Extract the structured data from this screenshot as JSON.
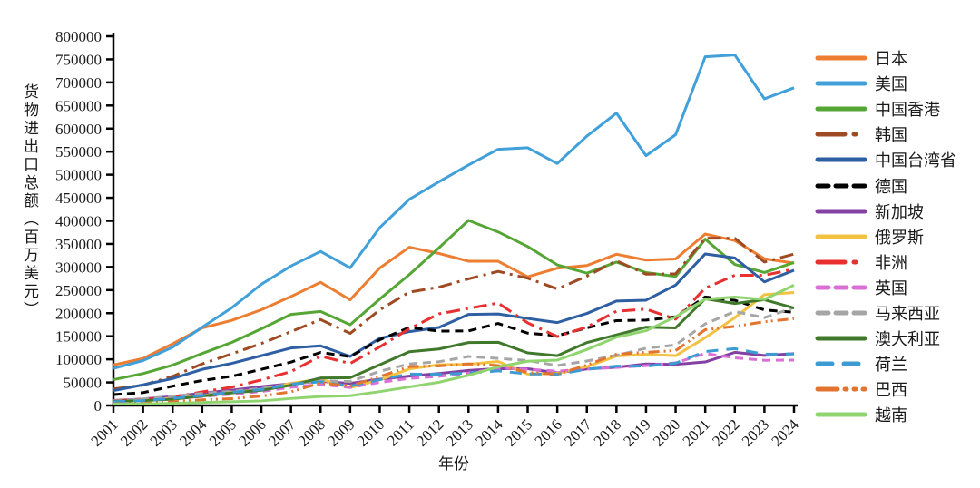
{
  "chart_data": {
    "type": "line",
    "title": "",
    "xlabel": "年份",
    "ylabel": "货物进出口总额（百万美元）",
    "ylim": [
      0,
      800000
    ],
    "yticks": [
      0,
      50000,
      100000,
      150000,
      200000,
      250000,
      300000,
      350000,
      400000,
      450000,
      500000,
      550000,
      600000,
      650000,
      700000,
      750000,
      800000
    ],
    "grid": false,
    "legend_position": "right",
    "x": [
      "2001",
      "2002",
      "2003",
      "2004",
      "2005",
      "2006",
      "2007",
      "2008",
      "2009",
      "2010",
      "2011",
      "2012",
      "2013",
      "2014",
      "2015",
      "2016",
      "2017",
      "2018",
      "2019",
      "2020",
      "2021",
      "2022",
      "2023",
      "2024"
    ],
    "series": [
      {
        "id": "japan",
        "name": "日本",
        "color": "#ED7D31",
        "style": "solid",
        "values": [
          87750,
          101900,
          133570,
          167890,
          184410,
          207360,
          236020,
          266790,
          228850,
          297770,
          342890,
          329450,
          312550,
          312440,
          278660,
          297470,
          303140,
          327660,
          315000,
          317530,
          371400,
          357400,
          318000,
          308270
        ]
      },
      {
        "id": "usa",
        "name": "美国",
        "color": "#41A0D9",
        "style": "solid",
        "values": [
          80490,
          97180,
          126330,
          169630,
          211630,
          262680,
          302080,
          333740,
          298260,
          385340,
          446650,
          484680,
          521000,
          555120,
          558390,
          524270,
          583700,
          633520,
          541220,
          586720,
          755640,
          759430,
          664450,
          688280
        ]
      },
      {
        "id": "hong-kong",
        "name": "中国香港",
        "color": "#56A636",
        "style": "solid",
        "values": [
          55970,
          69210,
          87410,
          112680,
          136700,
          166170,
          197250,
          203670,
          174930,
          230580,
          283520,
          341490,
          401010,
          376000,
          344340,
          304600,
          286650,
          310630,
          287970,
          279520,
          360330,
          305550,
          288090,
          309670
        ]
      },
      {
        "id": "korea",
        "name": "韩国",
        "color": "#9E4B24",
        "style": "dashdot",
        "values": [
          35910,
          44070,
          63230,
          90070,
          111930,
          134310,
          159900,
          186110,
          156200,
          207170,
          245630,
          256330,
          274250,
          290490,
          275790,
          252560,
          280260,
          313430,
          284540,
          285260,
          362350,
          362280,
          310800,
          328080
        ]
      },
      {
        "id": "taiwan",
        "name": "中国台湾省",
        "color": "#2E5FA3",
        "style": "solid",
        "values": [
          32340,
          44650,
          58370,
          78320,
          91230,
          107840,
          124480,
          129220,
          106220,
          145370,
          160030,
          168960,
          197280,
          198310,
          188560,
          179600,
          199390,
          226250,
          228080,
          260810,
          328340,
          319680,
          267800,
          292970
        ]
      },
      {
        "id": "germany",
        "name": "德国",
        "color": "#000000",
        "style": "dashed",
        "values": [
          23530,
          27840,
          41880,
          54120,
          63250,
          78230,
          94060,
          114990,
          105730,
          142390,
          169150,
          161130,
          161560,
          177750,
          156780,
          151290,
          168110,
          183880,
          184920,
          192050,
          235180,
          227810,
          206970,
          201880
        ]
      },
      {
        "id": "singapore",
        "name": "新加坡",
        "color": "#8441A4",
        "style": "solid",
        "values": [
          10930,
          14020,
          19350,
          26680,
          33150,
          40850,
          47160,
          52440,
          47860,
          57060,
          63650,
          69320,
          75910,
          79740,
          79660,
          70800,
          79200,
          82830,
          89970,
          89060,
          94260,
          115130,
          108390,
          112350
        ]
      },
      {
        "id": "russia",
        "name": "俄罗斯",
        "color": "#F3C242",
        "style": "solid",
        "values": [
          10670,
          11930,
          15760,
          21230,
          29100,
          33390,
          48170,
          56830,
          38800,
          55450,
          79250,
          88160,
          89210,
          95280,
          68060,
          69530,
          84070,
          107060,
          110760,
          107770,
          146870,
          190270,
          240110,
          244810
        ]
      },
      {
        "id": "africa",
        "name": "非洲",
        "color": "#E83030",
        "style": "dashdot",
        "values": [
          10800,
          12390,
          18540,
          29460,
          39740,
          55500,
          73570,
          106840,
          91070,
          126910,
          166240,
          198490,
          210240,
          221880,
          179000,
          149120,
          170000,
          204190,
          208700,
          187000,
          254290,
          282100,
          282090,
          295560
        ]
      },
      {
        "id": "uk",
        "name": "英国",
        "color": "#DA70D6",
        "style": "dashed",
        "values": [
          10310,
          11400,
          14400,
          19700,
          24520,
          30250,
          39430,
          45610,
          39140,
          50100,
          58730,
          63100,
          70070,
          80870,
          78540,
          74340,
          79030,
          82410,
          86270,
          92300,
          112740,
          103190,
          97890,
          98350
        ]
      },
      {
        "id": "malaysia",
        "name": "马来西亚",
        "color": "#A6A6A6",
        "style": "dashed",
        "values": [
          9430,
          14270,
          20130,
          26260,
          30700,
          37110,
          46390,
          53470,
          51960,
          74210,
          90030,
          94810,
          106070,
          102020,
          97360,
          86570,
          96260,
          108660,
          123960,
          131160,
          176800,
          203590,
          190240,
          212040
        ]
      },
      {
        "id": "australia",
        "name": "澳大利亚",
        "color": "#41792C",
        "style": "solid",
        "values": [
          9000,
          10440,
          13560,
          20390,
          27250,
          32880,
          43850,
          59660,
          60080,
          88090,
          116530,
          122380,
          136380,
          136910,
          113960,
          107830,
          136240,
          152980,
          169600,
          168160,
          231190,
          220920,
          229190,
          211280
        ]
      },
      {
        "id": "netherlands",
        "name": "荷兰",
        "color": "#3D9BD3",
        "style": "longdash",
        "values": [
          7940,
          10590,
          15440,
          21490,
          28810,
          34470,
          46320,
          51270,
          41980,
          56140,
          68150,
          67560,
          70150,
          75050,
          68270,
          67570,
          78390,
          85170,
          85210,
          91690,
          116940,
          123060,
          110950,
          111640
        ]
      },
      {
        "id": "brazil",
        "name": "巴西",
        "color": "#E2742F",
        "style": "dashdotdot",
        "values": [
          3700,
          4470,
          7990,
          12360,
          14820,
          20290,
          29710,
          48660,
          42400,
          62550,
          84200,
          85720,
          90280,
          86580,
          71540,
          67780,
          87540,
          111230,
          115280,
          118860,
          164060,
          171490,
          181440,
          188170
        ]
      },
      {
        "id": "vietnam",
        "name": "越南",
        "color": "#90D470",
        "style": "solid",
        "values": [
          2820,
          3260,
          4630,
          6740,
          8200,
          9950,
          15120,
          19460,
          21050,
          30090,
          40180,
          50410,
          65480,
          83640,
          95820,
          98230,
          121270,
          147860,
          162000,
          192280,
          230200,
          234920,
          229800,
          260650
        ]
      }
    ]
  }
}
